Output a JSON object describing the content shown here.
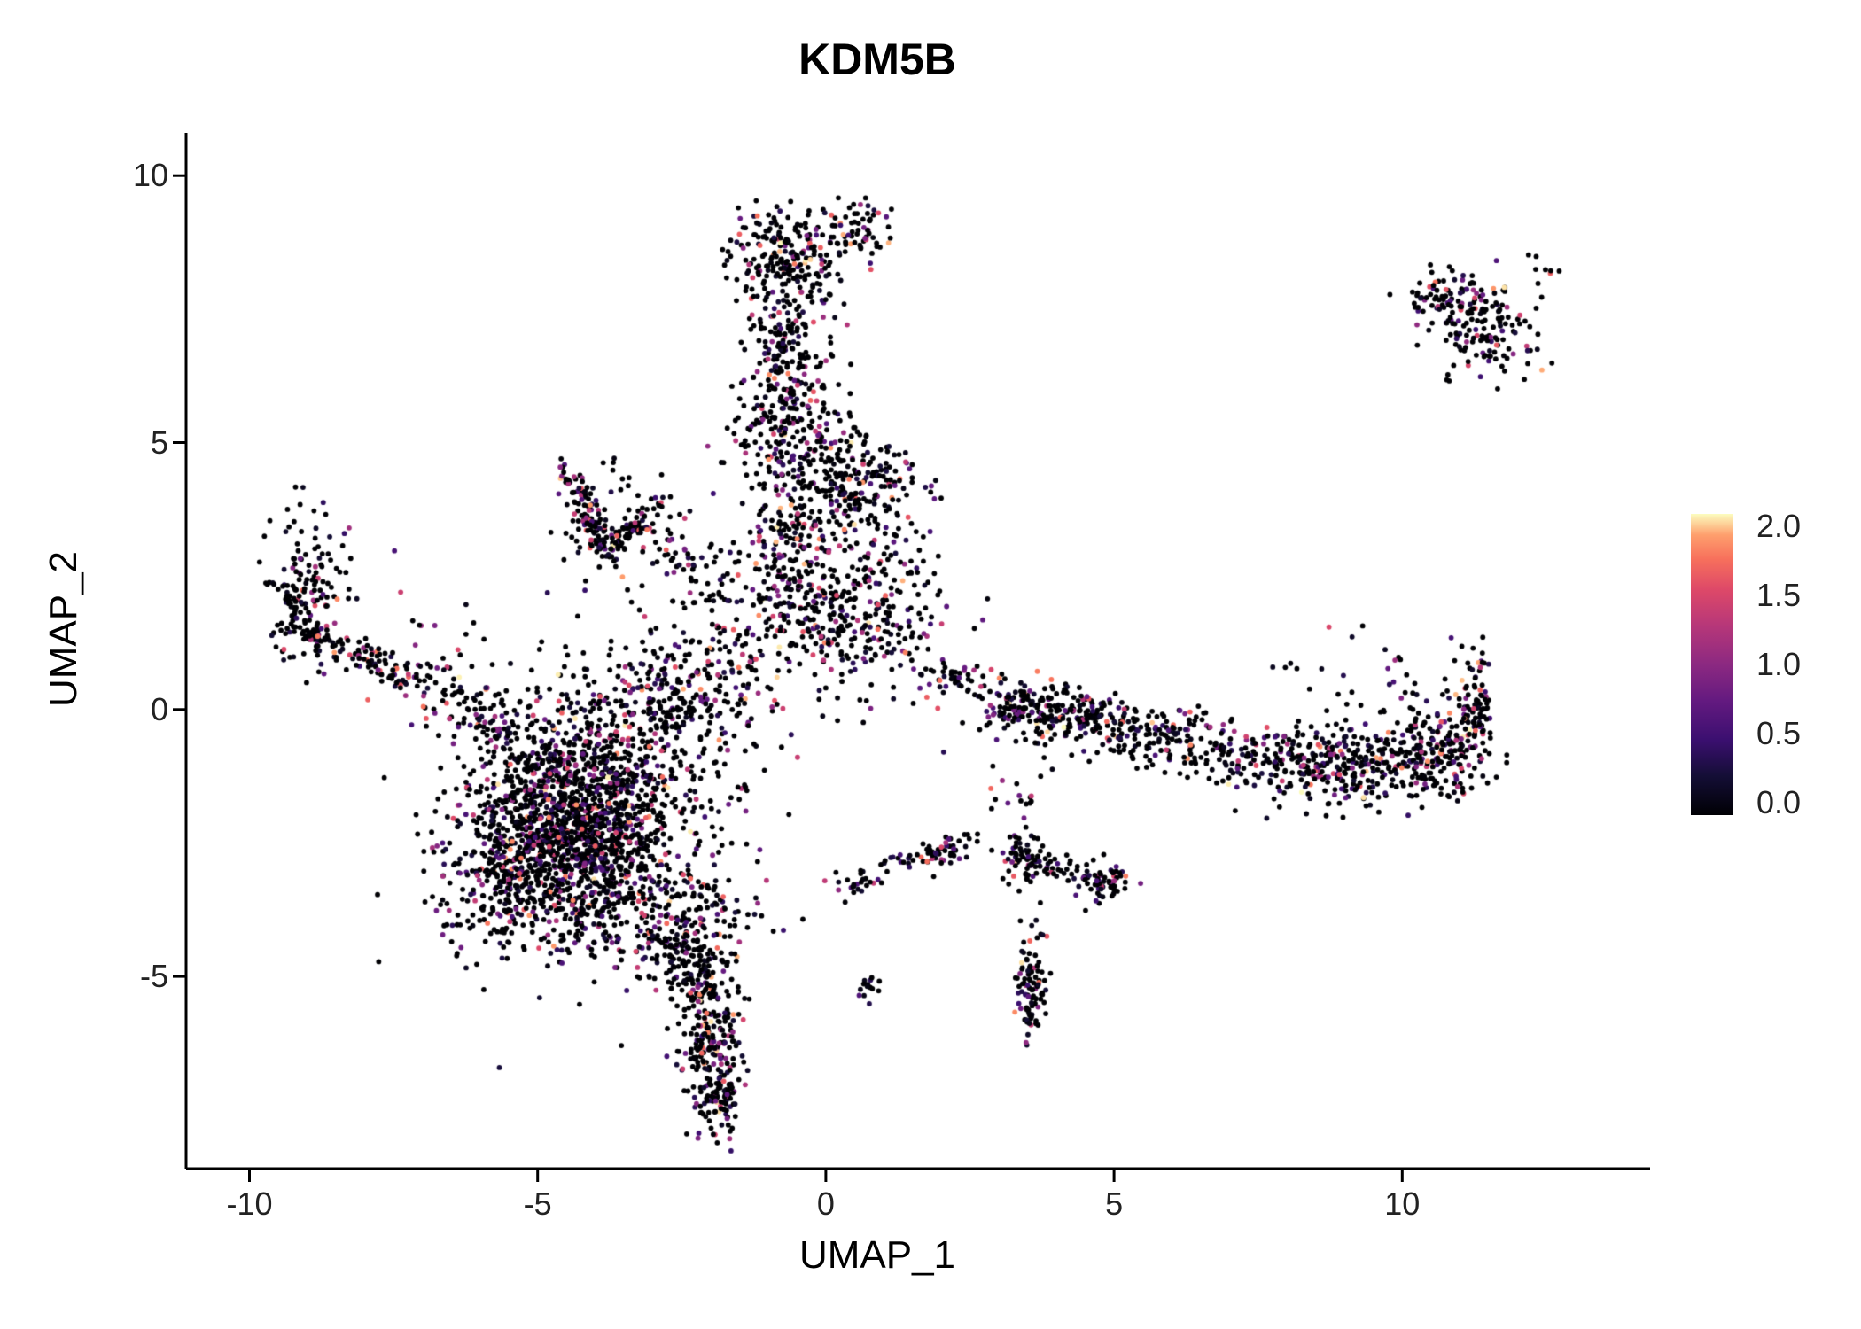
{
  "title": "KDM5B",
  "axes": {
    "x": {
      "label": "UMAP_1",
      "ticks": [
        "-10",
        "-5",
        "0",
        "5",
        "10"
      ]
    },
    "y": {
      "label": "UMAP_2",
      "ticks": [
        "10",
        "5",
        "0",
        "-5"
      ]
    }
  },
  "legend": {
    "tick_labels": [
      "2.0",
      "1.5",
      "1.0",
      "0.5",
      "0.0"
    ]
  },
  "chart_data": {
    "type": "scatter",
    "title": "KDM5B",
    "xlabel": "UMAP_1",
    "ylabel": "UMAP_2",
    "xlim": [
      -11.1,
      14.3
    ],
    "ylim": [
      -8.6,
      10.8
    ],
    "x_ticks": [
      -10,
      -5,
      0,
      5,
      10
    ],
    "y_ticks": [
      10,
      5,
      0,
      -5
    ],
    "grid": false,
    "legend_position": "right",
    "background": "#ffffff",
    "colorbar": {
      "label_values": [
        2.0,
        1.5,
        1.0,
        0.5,
        0.0
      ],
      "range": [
        0.0,
        2.0
      ],
      "stops": [
        {
          "t": 0.0,
          "color": "#000004"
        },
        {
          "t": 0.13,
          "color": "#140e36"
        },
        {
          "t": 0.25,
          "color": "#3b0f70"
        },
        {
          "t": 0.38,
          "color": "#641a80"
        },
        {
          "t": 0.5,
          "color": "#8c2981"
        },
        {
          "t": 0.63,
          "color": "#b73779"
        },
        {
          "t": 0.75,
          "color": "#de4968"
        },
        {
          "t": 0.85,
          "color": "#f7705c"
        },
        {
          "t": 0.93,
          "color": "#fe9f6d"
        },
        {
          "t": 1.0,
          "color": "#fcfdbf"
        }
      ]
    },
    "point_radius_px": 2.9,
    "seed": 1337,
    "expression": {
      "zero_fraction": 0.53,
      "max": 2.0,
      "skew": 2.8
    },
    "clusters": [
      {
        "name": "main-core",
        "type": "gauss",
        "cx": -4.4,
        "cy": -2.3,
        "sx": 0.85,
        "sy": 1.05,
        "n": 1500
      },
      {
        "name": "main-halo",
        "type": "gauss",
        "cx": -3.9,
        "cy": -1.6,
        "sx": 1.35,
        "sy": 1.25,
        "n": 450
      },
      {
        "name": "main-upper",
        "type": "gauss",
        "cx": -2.9,
        "cy": -0.1,
        "sx": 0.75,
        "sy": 0.75,
        "n": 220
      },
      {
        "name": "main-left-edge",
        "type": "gauss",
        "cx": -5.8,
        "cy": -3.2,
        "sx": 0.5,
        "sy": 0.7,
        "n": 150
      },
      {
        "name": "main-lower-right",
        "type": "gauss",
        "cx": -2.2,
        "cy": -3.9,
        "sx": 0.6,
        "sy": 0.5,
        "n": 120
      },
      {
        "name": "neck",
        "type": "line",
        "x1": -3.0,
        "y1": -4.3,
        "x2": -2.2,
        "y2": -5.0,
        "jitter": 0.3,
        "n": 120
      },
      {
        "name": "tail",
        "type": "gauss",
        "cx": -2.0,
        "cy": -6.1,
        "sx": 0.28,
        "sy": 0.85,
        "n": 260
      },
      {
        "name": "tail-tip",
        "type": "gauss",
        "cx": -1.85,
        "cy": -7.3,
        "sx": 0.18,
        "sy": 0.3,
        "n": 60
      },
      {
        "name": "arm-blob",
        "type": "gauss",
        "cx": -9.0,
        "cy": 2.3,
        "sx": 0.35,
        "sy": 0.65,
        "n": 150
      },
      {
        "name": "arm-line",
        "type": "line",
        "x1": -9.3,
        "y1": 1.5,
        "x2": -6.9,
        "y2": 0.5,
        "jitter": 0.18,
        "n": 130
      },
      {
        "name": "arm-trail",
        "type": "line",
        "x1": -6.8,
        "y1": 0.4,
        "x2": -5.3,
        "y2": -0.5,
        "jitter": 0.3,
        "n": 90
      },
      {
        "name": "sparse-left",
        "type": "gauss",
        "cx": -6.9,
        "cy": 0.9,
        "sx": 0.5,
        "sy": 0.7,
        "n": 25
      },
      {
        "name": "wish-left",
        "type": "line",
        "x1": -4.55,
        "y1": 4.55,
        "x2": -3.8,
        "y2": 2.9,
        "jitter": 0.1,
        "n": 90
      },
      {
        "name": "wish-right",
        "type": "line",
        "x1": -3.8,
        "y1": 2.9,
        "x2": -2.9,
        "y2": 3.9,
        "jitter": 0.1,
        "n": 70
      },
      {
        "name": "wish-fill",
        "type": "gauss",
        "cx": -3.8,
        "cy": 3.6,
        "sx": 0.5,
        "sy": 0.55,
        "n": 60
      },
      {
        "name": "wish-bridge",
        "type": "line",
        "x1": -2.9,
        "y1": 3.3,
        "x2": -1.7,
        "y2": 2.1,
        "jitter": 0.25,
        "n": 60
      },
      {
        "name": "col-top",
        "type": "gauss",
        "cx": -0.75,
        "cy": 8.5,
        "sx": 0.5,
        "sy": 0.45,
        "n": 200
      },
      {
        "name": "col-topright",
        "type": "gauss",
        "cx": 0.55,
        "cy": 9.0,
        "sx": 0.3,
        "sy": 0.3,
        "n": 70
      },
      {
        "name": "col-upper",
        "type": "gauss",
        "cx": -0.7,
        "cy": 6.6,
        "sx": 0.4,
        "sy": 0.85,
        "n": 240
      },
      {
        "name": "col-mid",
        "type": "gauss",
        "cx": -0.5,
        "cy": 5.1,
        "sx": 0.55,
        "sy": 0.45,
        "n": 150
      },
      {
        "name": "col-right-lobe",
        "type": "gauss",
        "cx": 0.55,
        "cy": 4.15,
        "sx": 0.45,
        "sy": 0.45,
        "n": 170
      },
      {
        "name": "col-lower",
        "type": "gauss",
        "cx": -0.6,
        "cy": 3.3,
        "sx": 0.55,
        "sy": 0.7,
        "n": 210
      },
      {
        "name": "col-base",
        "type": "gauss",
        "cx": 0.2,
        "cy": 1.85,
        "sx": 0.85,
        "sy": 0.5,
        "n": 280
      },
      {
        "name": "col-base-left",
        "type": "gauss",
        "cx": -1.6,
        "cy": 0.7,
        "sx": 0.85,
        "sy": 0.8,
        "n": 160
      },
      {
        "name": "col-right-sparse",
        "type": "gauss",
        "cx": 1.15,
        "cy": 3.0,
        "sx": 0.4,
        "sy": 0.6,
        "n": 60
      },
      {
        "name": "band-start",
        "type": "gauss",
        "cx": 2.2,
        "cy": 0.55,
        "sx": 0.3,
        "sy": 0.18,
        "n": 45
      },
      {
        "name": "band-a",
        "type": "gauss",
        "cx": 3.4,
        "cy": 0.05,
        "sx": 0.5,
        "sy": 0.3,
        "n": 170
      },
      {
        "name": "band-knot",
        "type": "gauss",
        "cx": 4.5,
        "cy": -0.15,
        "sx": 0.3,
        "sy": 0.22,
        "n": 90
      },
      {
        "name": "band-b",
        "type": "gauss",
        "cx": 5.6,
        "cy": -0.45,
        "sx": 0.6,
        "sy": 0.28,
        "n": 140
      },
      {
        "name": "band-c",
        "type": "gauss",
        "cx": 7.3,
        "cy": -0.9,
        "sx": 0.6,
        "sy": 0.3,
        "n": 130
      },
      {
        "name": "band-d",
        "type": "gauss",
        "cx": 8.9,
        "cy": -1.05,
        "sx": 0.55,
        "sy": 0.38,
        "n": 230
      },
      {
        "name": "band-e",
        "type": "gauss",
        "cx": 10.5,
        "cy": -0.8,
        "sx": 0.55,
        "sy": 0.45,
        "n": 260
      },
      {
        "name": "band-tip",
        "type": "gauss",
        "cx": 11.25,
        "cy": 0.2,
        "sx": 0.18,
        "sy": 0.45,
        "n": 80
      },
      {
        "name": "band-above",
        "type": "gauss",
        "cx": 9.4,
        "cy": 0.6,
        "sx": 0.9,
        "sy": 0.45,
        "n": 25
      },
      {
        "name": "arc-small",
        "type": "line",
        "x1": 0.9,
        "y1": -3.05,
        "x2": 2.45,
        "y2": -2.5,
        "jitter": 0.13,
        "n": 65
      },
      {
        "name": "dots-a",
        "type": "gauss",
        "cx": 0.5,
        "cy": -3.25,
        "sx": 0.22,
        "sy": 0.15,
        "n": 25
      },
      {
        "name": "spike",
        "type": "gauss",
        "cx": 3.55,
        "cy": -5.1,
        "sx": 0.14,
        "sy": 0.5,
        "n": 100
      },
      {
        "name": "knot-b",
        "type": "gauss",
        "cx": 3.5,
        "cy": -2.8,
        "sx": 0.22,
        "sy": 0.28,
        "n": 70
      },
      {
        "name": "knot-c",
        "type": "gauss",
        "cx": 4.85,
        "cy": -3.2,
        "sx": 0.25,
        "sy": 0.2,
        "n": 60
      },
      {
        "name": "knot-bridge",
        "type": "line",
        "x1": 3.7,
        "y1": -2.9,
        "x2": 4.55,
        "y2": -3.1,
        "jitter": 0.12,
        "n": 30
      },
      {
        "name": "dots-b",
        "type": "gauss",
        "cx": 0.75,
        "cy": -5.25,
        "sx": 0.12,
        "sy": 0.12,
        "n": 14
      },
      {
        "name": "sparse-c",
        "type": "gauss",
        "cx": 3.3,
        "cy": -1.7,
        "sx": 0.3,
        "sy": 0.5,
        "n": 18
      },
      {
        "name": "sparse-d",
        "type": "gauss",
        "cx": 0.8,
        "cy": 0.7,
        "sx": 0.5,
        "sy": 0.4,
        "n": 30
      },
      {
        "name": "island-top",
        "type": "gauss",
        "cx": 11.0,
        "cy": 7.65,
        "sx": 0.42,
        "sy": 0.33,
        "n": 90
      },
      {
        "name": "island-bottom",
        "type": "gauss",
        "cx": 11.5,
        "cy": 6.9,
        "sx": 0.45,
        "sy": 0.4,
        "n": 100
      },
      {
        "name": "island-left",
        "type": "gauss",
        "cx": 10.45,
        "cy": 7.8,
        "sx": 0.2,
        "sy": 0.15,
        "n": 20
      },
      {
        "name": "island-outlier",
        "type": "gauss",
        "cx": 12.35,
        "cy": 8.25,
        "sx": 0.15,
        "sy": 0.12,
        "n": 8
      }
    ]
  }
}
